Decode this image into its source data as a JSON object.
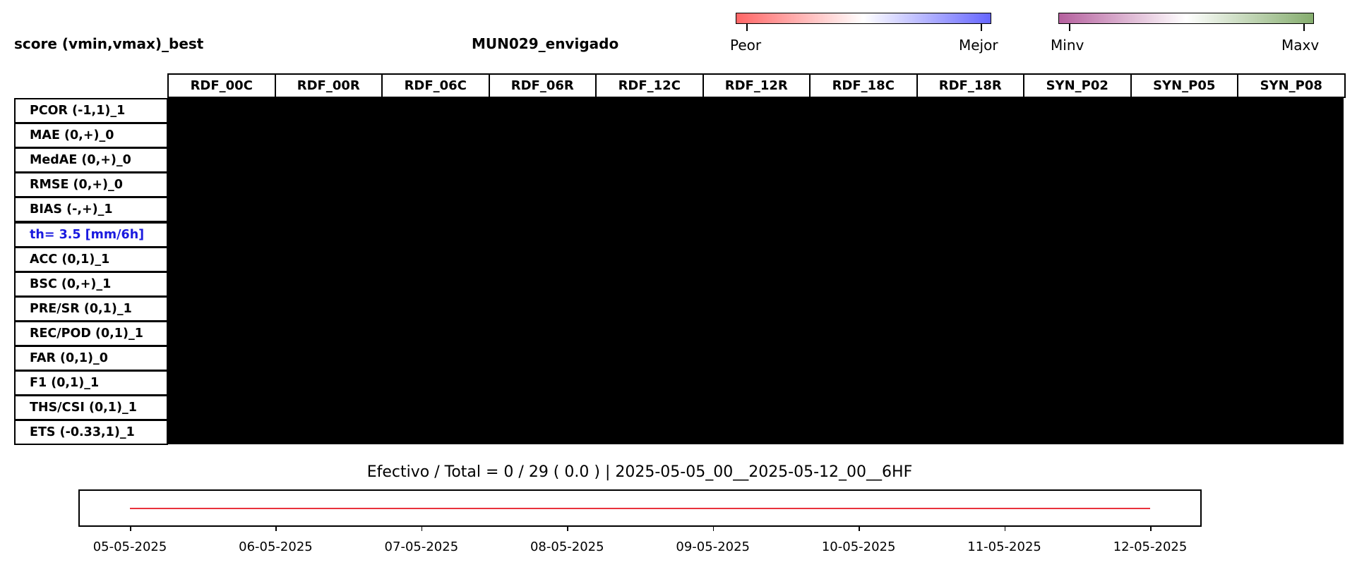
{
  "header": {
    "score_label": "score (vmin,vmax)_best",
    "station": "MUN029_envigado"
  },
  "colorbars": [
    {
      "left_label": "Peor",
      "right_label": "Mejor",
      "colors": [
        "#ff6666",
        "#ffffff",
        "#6666ff"
      ]
    },
    {
      "left_label": "Minv",
      "right_label": "Maxv",
      "colors": [
        "#b5609e",
        "#ffffff",
        "#85ad6e"
      ]
    }
  ],
  "colors": {
    "threshold_row": "#1a1adf",
    "timeseries_line": "#e8323c",
    "cell_fill": "#000000"
  },
  "chart_data": {
    "type": "heatmap",
    "columns": [
      "RDF_00C",
      "RDF_00R",
      "RDF_06C",
      "RDF_06R",
      "RDF_12C",
      "RDF_12R",
      "RDF_18C",
      "RDF_18R",
      "SYN_P02",
      "SYN_P05",
      "SYN_P08"
    ],
    "rows": [
      "PCOR (-1,1)_1",
      "MAE (0,+)_0",
      "MedAE (0,+)_0",
      "RMSE (0,+)_0",
      "BIAS (-,+)_1",
      "th= 3.5 [mm/6h]",
      "ACC (0,1)_1",
      "BSC (0,+)_1",
      "PRE/SR (0,1)_1",
      "REC/POD (0,1)_1",
      "FAR (0,1)_0",
      "F1 (0,1)_1",
      "THS/CSI (0,1)_1",
      "ETS (-0.33,1)_1"
    ],
    "threshold_row_index": 5,
    "summary": "Efectivo / Total  =  0 / 29 ( 0.0 ) | 2025-05-05_00__2025-05-12_00__6HF",
    "timeseries": {
      "type": "line",
      "x_ticks": [
        "05-05-2025",
        "06-05-2025",
        "07-05-2025",
        "08-05-2025",
        "09-05-2025",
        "10-05-2025",
        "11-05-2025",
        "12-05-2025"
      ],
      "xlim_days": [
        0,
        7
      ]
    }
  }
}
